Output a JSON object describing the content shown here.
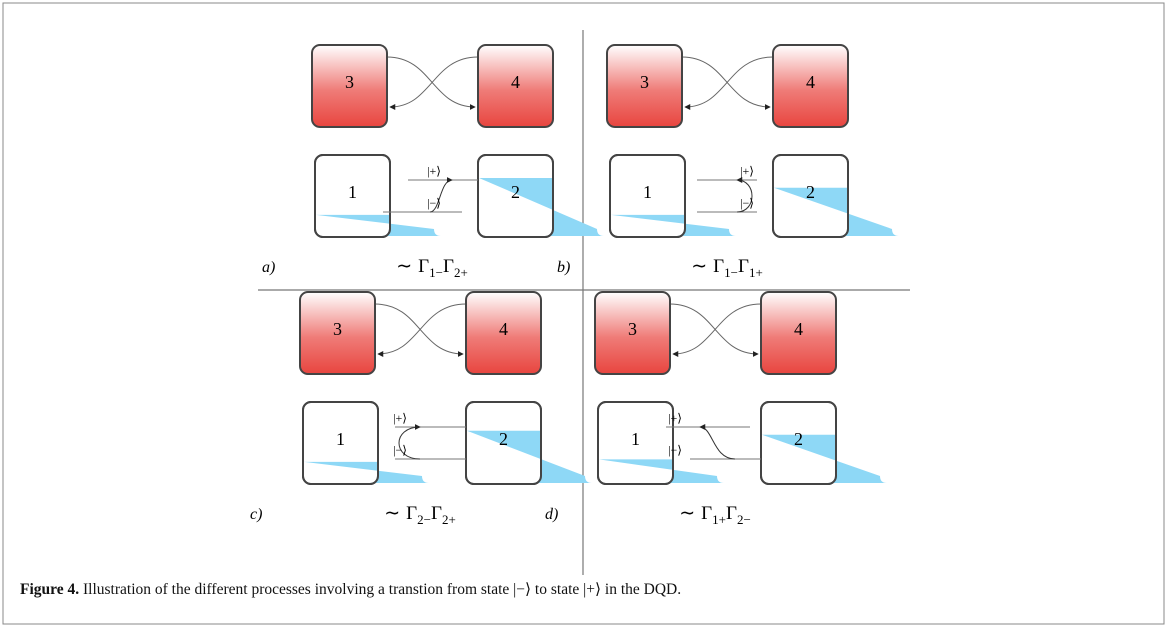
{
  "panels": [
    {
      "label": "a)",
      "boxes": [
        "3",
        "4",
        "1",
        "2"
      ],
      "levels": [
        "|+⟩",
        "|−⟩"
      ],
      "rate": {
        "prefix": "∼",
        "terms": [
          {
            "base": "Γ",
            "sub": "1−"
          },
          {
            "base": "Γ",
            "sub": "2+"
          }
        ]
      }
    },
    {
      "label": "b)",
      "boxes": [
        "3",
        "4",
        "1",
        "2"
      ],
      "levels": [
        "|+⟩",
        "|−⟩"
      ],
      "rate": {
        "prefix": "∼",
        "terms": [
          {
            "base": "Γ",
            "sub": "1−"
          },
          {
            "base": "Γ",
            "sub": "1+"
          }
        ]
      }
    },
    {
      "label": "c)",
      "boxes": [
        "3",
        "4",
        "1",
        "2"
      ],
      "levels": [
        "|+⟩",
        "|−⟩"
      ],
      "rate": {
        "prefix": "∼",
        "terms": [
          {
            "base": "Γ",
            "sub": "2−"
          },
          {
            "base": "Γ",
            "sub": "2+"
          }
        ]
      }
    },
    {
      "label": "d)",
      "boxes": [
        "3",
        "4",
        "1",
        "2"
      ],
      "levels": [
        "|+⟩",
        "|−⟩"
      ],
      "rate": {
        "prefix": "∼",
        "terms": [
          {
            "base": "Γ",
            "sub": "1+"
          },
          {
            "base": "Γ",
            "sub": "2−"
          }
        ]
      }
    }
  ],
  "caption": {
    "label": "Figure 4.",
    "text": " Illustration of the different processes involving a transtion from state |−⟩ to state |+⟩ in the DQD."
  }
}
